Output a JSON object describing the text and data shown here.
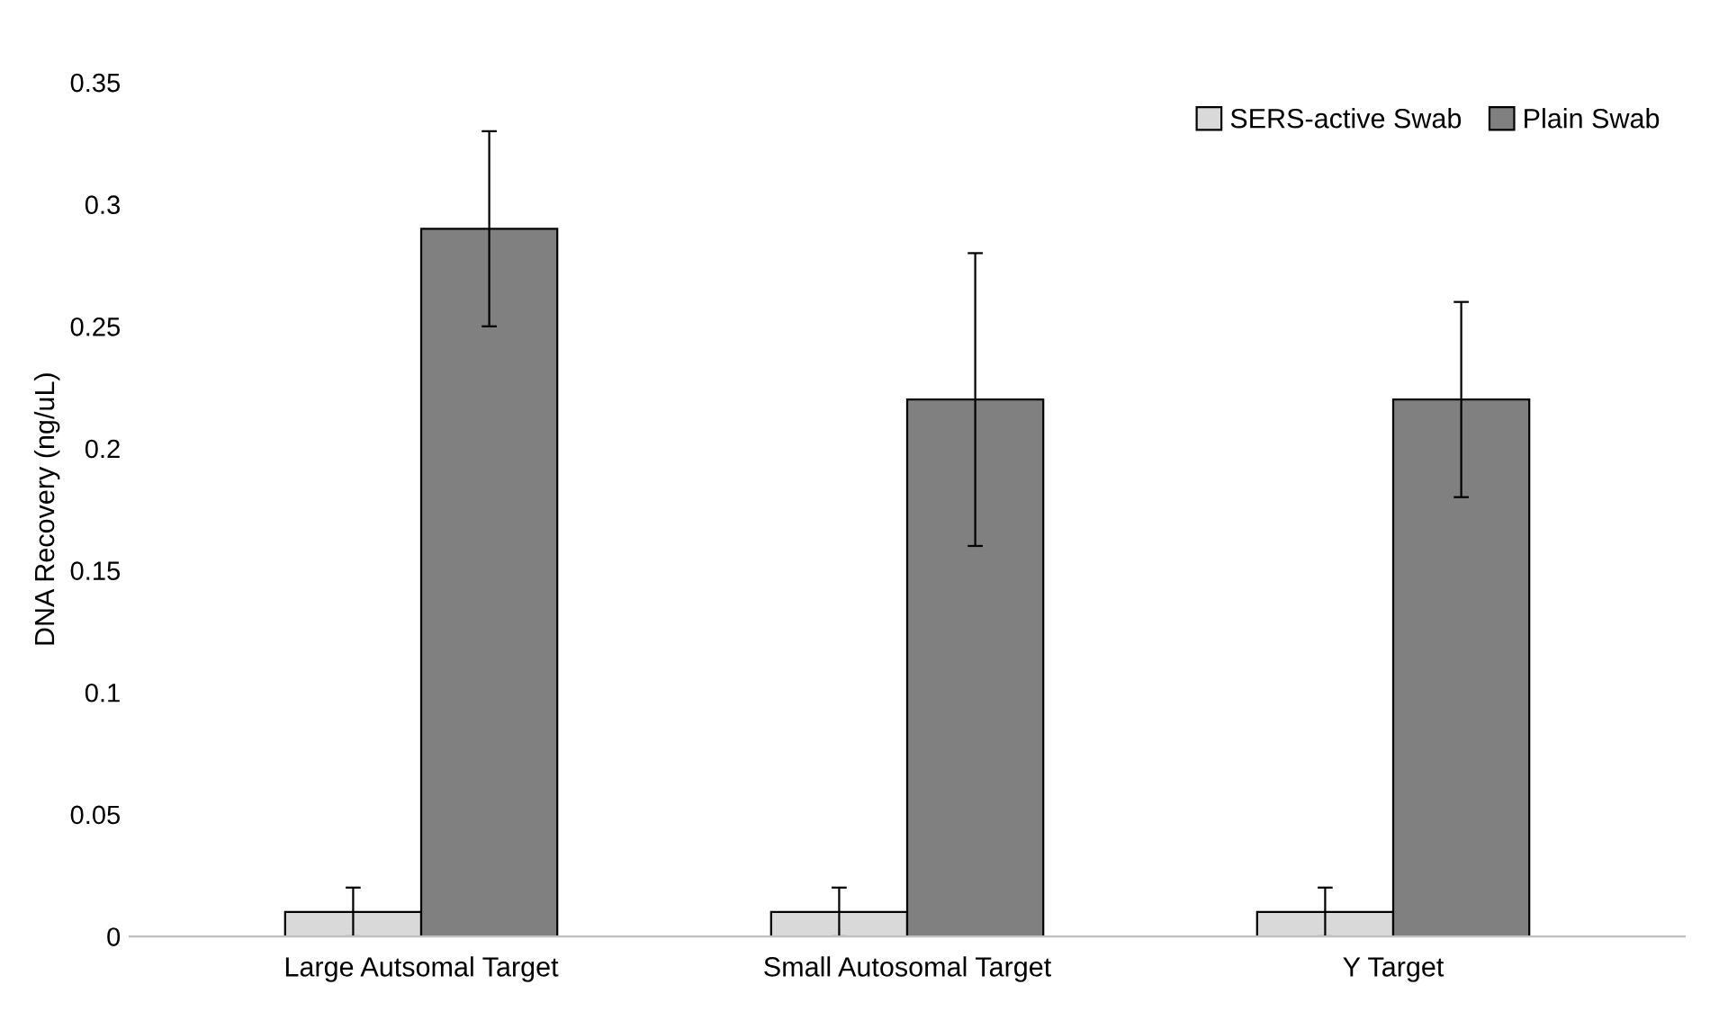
{
  "chart_data": {
    "type": "bar",
    "ylabel": "DNA Recovery (ng/uL)",
    "categories": [
      "Large Autsomal Target",
      "Small Autosomal Target",
      "Y Target"
    ],
    "series": [
      {
        "name": "SERS-active Swab",
        "color": "#d9d9d9",
        "values": [
          0.01,
          0.01,
          0.01
        ],
        "errors": [
          0.01,
          0.01,
          0.01
        ]
      },
      {
        "name": "Plain Swab",
        "color": "#808080",
        "values": [
          0.29,
          0.22,
          0.22
        ],
        "errors": [
          0.04,
          0.06,
          0.04
        ]
      }
    ],
    "ylim": [
      0,
      0.35
    ],
    "yticks": [
      0,
      0.05,
      0.1,
      0.15,
      0.2,
      0.25,
      0.3,
      0.35
    ],
    "grid": false,
    "legend": "top right"
  }
}
